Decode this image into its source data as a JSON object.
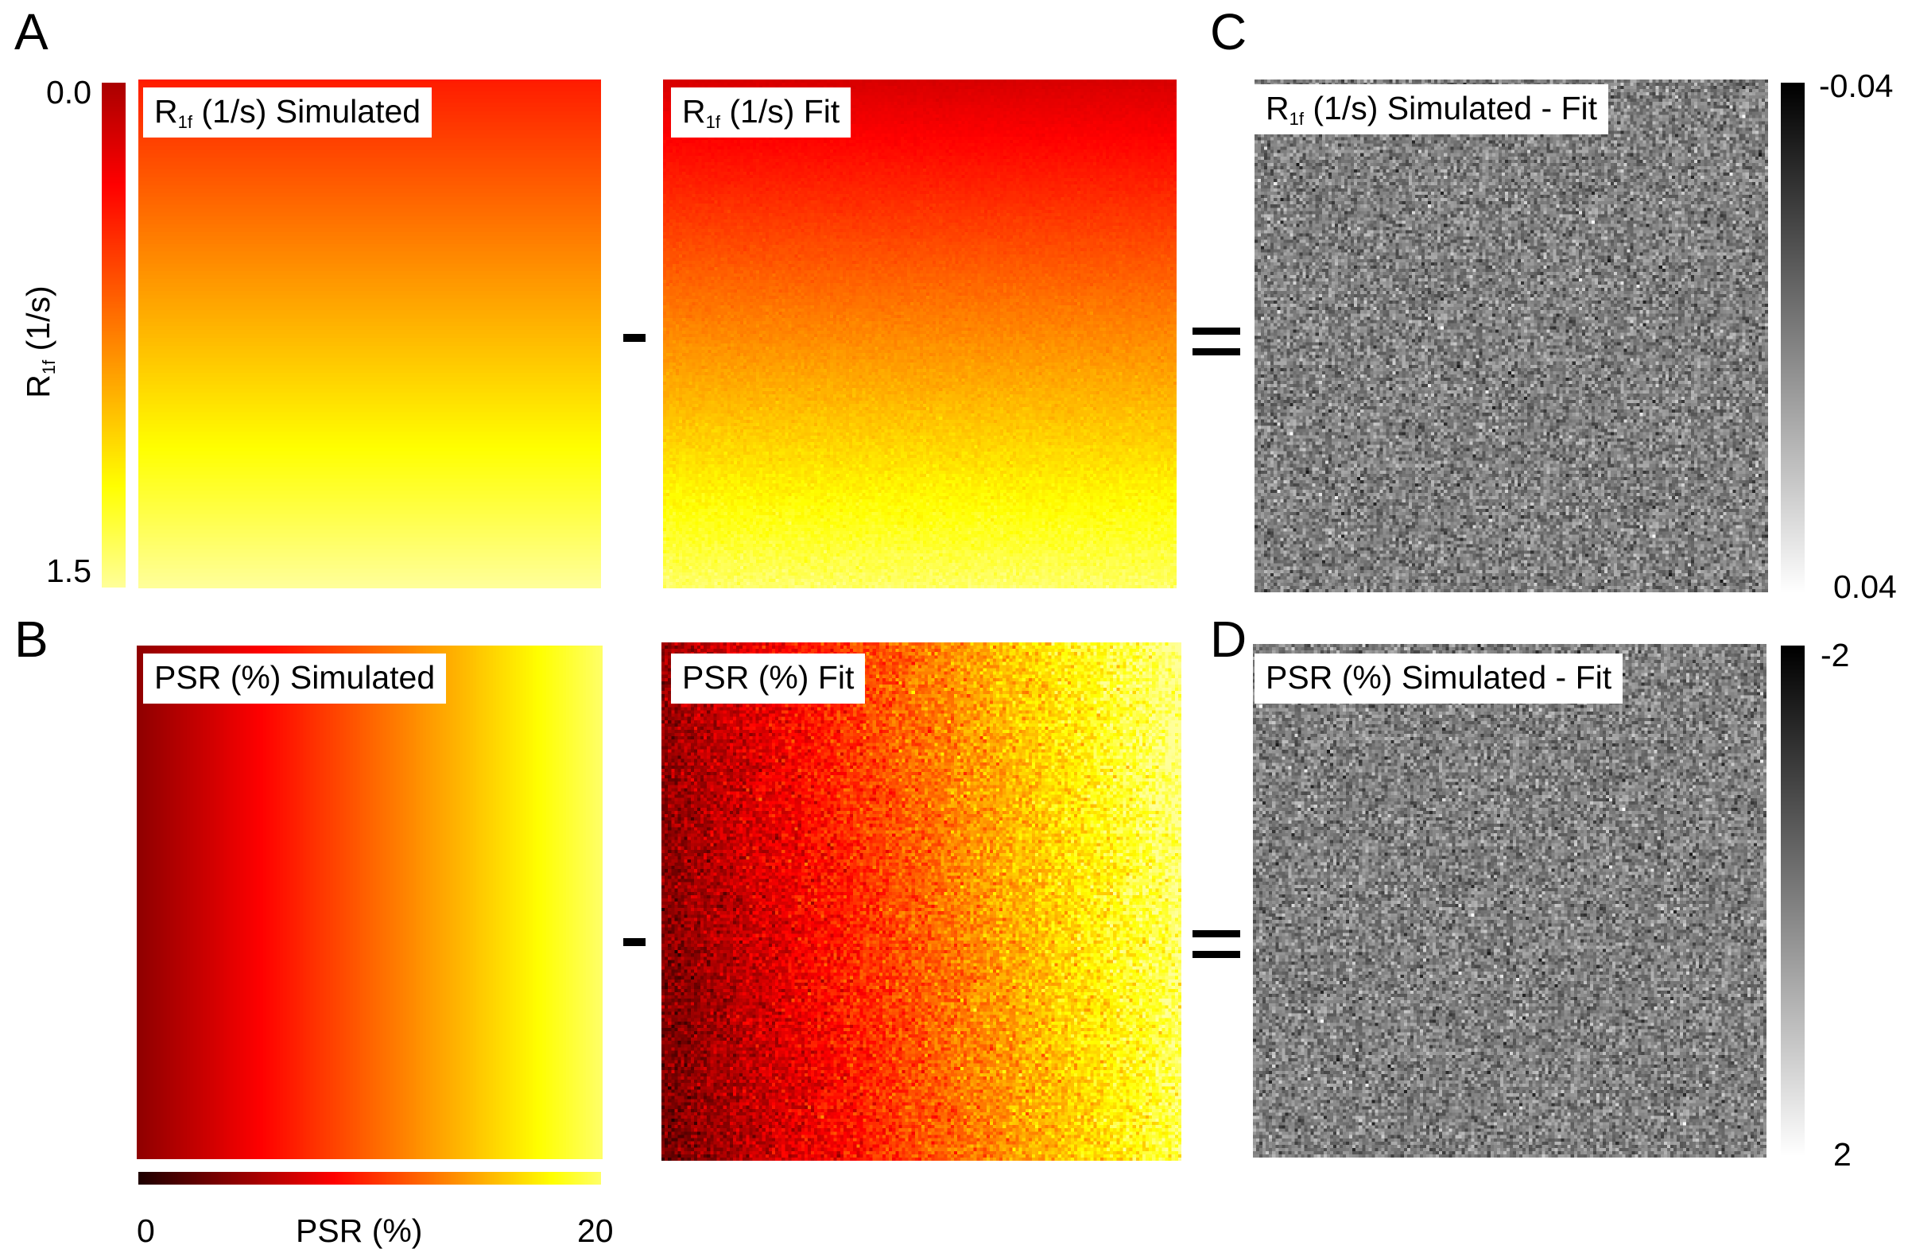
{
  "panels": {
    "A": {
      "letter": "A"
    },
    "B": {
      "letter": "B"
    },
    "C": {
      "letter": "C"
    },
    "D": {
      "letter": "D"
    }
  },
  "maps": {
    "r1f_sim": {
      "label_main": "R",
      "label_sub": "1f",
      "label_rest": " (1/s) Simulated"
    },
    "r1f_fit": {
      "label_main": "R",
      "label_sub": "1f",
      "label_rest": " (1/s) Fit"
    },
    "r1f_diff": {
      "label_main": "R",
      "label_sub": "1f",
      "label_rest": " (1/s) Simulated - Fit"
    },
    "psr_sim": {
      "label": "PSR (%) Simulated"
    },
    "psr_fit": {
      "label": "PSR (%) Fit"
    },
    "psr_diff": {
      "label": "PSR (%) Simulated - Fit"
    }
  },
  "colorbars": {
    "r1f": {
      "min_label": "0.0",
      "max_label": "1.5",
      "axis_main": "R",
      "axis_sub": "1f",
      "axis_rest": " (1/s)",
      "min": 0.0,
      "max": 1.5
    },
    "psr": {
      "min_label": "0",
      "max_label": "20",
      "axis_label": "PSR (%)",
      "min": 0,
      "max": 20
    },
    "r1f_diff": {
      "top_label": "-0.04",
      "bottom_label": "0.04",
      "min": -0.04,
      "max": 0.04
    },
    "psr_diff": {
      "top_label": "-2",
      "bottom_label": "2",
      "min": -2,
      "max": 2
    }
  },
  "operators": {
    "minus": "minus",
    "equals": "equals"
  },
  "colors": {
    "hot_dark": "#000000",
    "hot_red": "#ff0000",
    "hot_yellow": "#ffff00",
    "hot_white": "#ffffa0"
  }
}
